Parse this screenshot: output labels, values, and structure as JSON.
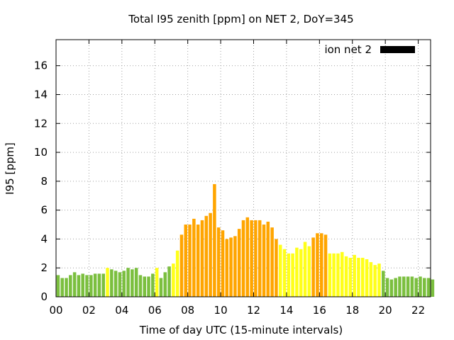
{
  "chart_data": {
    "type": "bar",
    "title": "Total I95 zenith [ppm] on NET 2, DoY=345",
    "xlabel": "Time of day UTC (15-minute intervals)",
    "ylabel": "I95 [ppm]",
    "xlim": [
      0,
      22.75
    ],
    "ylim": [
      0,
      17.8
    ],
    "x_ticks": [
      "00",
      "02",
      "04",
      "06",
      "08",
      "10",
      "12",
      "14",
      "16",
      "18",
      "20",
      "22"
    ],
    "y_ticks": [
      "0",
      "2",
      "4",
      "6",
      "8",
      "10",
      "12",
      "14",
      "16"
    ],
    "grid": true,
    "legend": {
      "label": "ion net 2",
      "color": "#000000",
      "position": "top-right"
    },
    "bin_hours": 0.25,
    "level_colors": {
      "low": "#7bbf3f",
      "medium": "#ffff1a",
      "high": "#ffa500"
    },
    "values": [
      1.5,
      1.3,
      1.3,
      1.5,
      1.7,
      1.5,
      1.6,
      1.5,
      1.5,
      1.6,
      1.6,
      1.6,
      2.0,
      1.9,
      1.8,
      1.7,
      1.8,
      2.0,
      1.9,
      2.0,
      1.5,
      1.4,
      1.4,
      1.6,
      2.0,
      1.3,
      1.7,
      2.1,
      2.3,
      3.2,
      4.3,
      5.0,
      5.0,
      5.4,
      5.0,
      5.3,
      5.6,
      5.8,
      7.8,
      4.8,
      4.6,
      4.0,
      4.1,
      4.2,
      4.7,
      5.3,
      5.5,
      5.3,
      5.3,
      5.3,
      5.0,
      5.2,
      4.8,
      4.0,
      3.6,
      3.3,
      3.0,
      3.0,
      3.4,
      3.3,
      3.8,
      3.5,
      4.1,
      4.4,
      4.4,
      4.3,
      3.0,
      3.0,
      3.0,
      3.1,
      2.8,
      2.7,
      2.9,
      2.7,
      2.7,
      2.6,
      2.4,
      2.2,
      2.3,
      1.8,
      1.3,
      1.2,
      1.3,
      1.4,
      1.4,
      1.4,
      1.4,
      1.3,
      1.4,
      1.3,
      1.3,
      1.2
    ],
    "levels": [
      "low",
      "low",
      "low",
      "low",
      "low",
      "low",
      "low",
      "low",
      "low",
      "low",
      "low",
      "low",
      "medium",
      "low",
      "low",
      "low",
      "low",
      "low",
      "low",
      "low",
      "low",
      "low",
      "low",
      "low",
      "medium",
      "low",
      "low",
      "low",
      "medium",
      "medium",
      "high",
      "high",
      "high",
      "high",
      "high",
      "high",
      "high",
      "high",
      "high",
      "high",
      "high",
      "high",
      "high",
      "high",
      "high",
      "high",
      "high",
      "high",
      "high",
      "high",
      "high",
      "high",
      "high",
      "high",
      "medium",
      "medium",
      "medium",
      "medium",
      "medium",
      "medium",
      "medium",
      "medium",
      "high",
      "high",
      "high",
      "high",
      "medium",
      "medium",
      "medium",
      "medium",
      "medium",
      "medium",
      "medium",
      "medium",
      "medium",
      "medium",
      "medium",
      "medium",
      "medium",
      "low",
      "low",
      "low",
      "low",
      "low",
      "low",
      "low",
      "low",
      "low",
      "low",
      "low",
      "low",
      "low"
    ]
  }
}
